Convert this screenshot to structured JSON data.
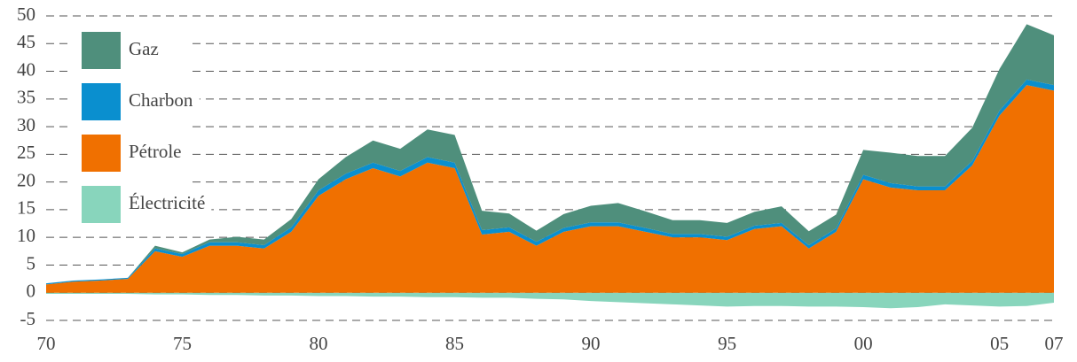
{
  "chart_data": {
    "type": "stacked_area",
    "x": [
      1970,
      1971,
      1972,
      1973,
      1974,
      1975,
      1976,
      1977,
      1978,
      1979,
      1980,
      1981,
      1982,
      1983,
      1984,
      1985,
      1986,
      1987,
      1988,
      1989,
      1990,
      1991,
      1992,
      1993,
      1994,
      1995,
      1996,
      1997,
      1998,
      1999,
      2000,
      2001,
      2002,
      2003,
      2004,
      2005,
      2006,
      2007
    ],
    "series": [
      {
        "name": "Électricité",
        "color": "#88d5bc",
        "values": [
          -0.2,
          -0.2,
          -0.2,
          -0.2,
          -0.3,
          -0.3,
          -0.4,
          -0.4,
          -0.5,
          -0.5,
          -0.6,
          -0.6,
          -0.7,
          -0.7,
          -0.8,
          -0.8,
          -0.9,
          -0.9,
          -1.1,
          -1.2,
          -1.5,
          -1.7,
          -1.9,
          -2.1,
          -2.3,
          -2.5,
          -2.4,
          -2.4,
          -2.5,
          -2.5,
          -2.6,
          -2.8,
          -2.6,
          -2.1,
          -2.3,
          -2.5,
          -2.4,
          -1.8
        ]
      },
      {
        "name": "Pétrole",
        "color": "#f07000",
        "values": [
          1.5,
          2,
          2.2,
          2.5,
          7.5,
          6.5,
          8.5,
          8.5,
          8,
          11,
          17.5,
          20.5,
          22.5,
          21,
          23.5,
          22.5,
          10.5,
          11,
          8.5,
          11,
          12,
          12,
          11,
          10,
          10,
          9.5,
          11.5,
          12,
          8,
          11,
          20.5,
          19,
          18.5,
          18.5,
          23,
          32,
          37.5,
          36.5
        ]
      },
      {
        "name": "Charbon",
        "color": "#0a8fcf",
        "values": [
          0.2,
          0.2,
          0.2,
          0.2,
          0.5,
          0.5,
          0.6,
          0.6,
          0.6,
          0.8,
          1,
          1,
          1,
          1,
          1,
          1,
          0.8,
          0.8,
          0.7,
          0.7,
          0.7,
          0.7,
          0.7,
          0.6,
          0.6,
          0.6,
          0.6,
          0.6,
          0.6,
          0.6,
          0.8,
          0.8,
          0.7,
          0.7,
          0.8,
          0.9,
          1,
          1
        ]
      },
      {
        "name": "Gaz",
        "color": "#4f8f7c",
        "values": [
          0,
          0,
          0,
          0,
          0.5,
          0.3,
          0.5,
          1,
          1,
          1.5,
          2,
          3,
          4,
          4,
          5,
          5,
          3.5,
          2.5,
          2,
          2.5,
          3,
          3.5,
          3,
          2.5,
          2.5,
          2.5,
          2.5,
          3,
          2.5,
          2.5,
          4.5,
          5.5,
          5.5,
          5.5,
          6,
          7.5,
          10,
          9
        ]
      }
    ],
    "xlim": [
      1970,
      2007
    ],
    "xticks": [
      {
        "value": 1970,
        "label": "70"
      },
      {
        "value": 1975,
        "label": "75"
      },
      {
        "value": 1980,
        "label": "80"
      },
      {
        "value": 1985,
        "label": "85"
      },
      {
        "value": 1990,
        "label": "90"
      },
      {
        "value": 1995,
        "label": "95"
      },
      {
        "value": 2000,
        "label": "00"
      },
      {
        "value": 2005,
        "label": "05"
      },
      {
        "value": 2007,
        "label": "07"
      }
    ],
    "ylim": [
      -5,
      50
    ],
    "yticks": [
      -5,
      0,
      5,
      10,
      15,
      20,
      25,
      30,
      35,
      40,
      45,
      50
    ],
    "grid": true,
    "legend": "upper left"
  }
}
